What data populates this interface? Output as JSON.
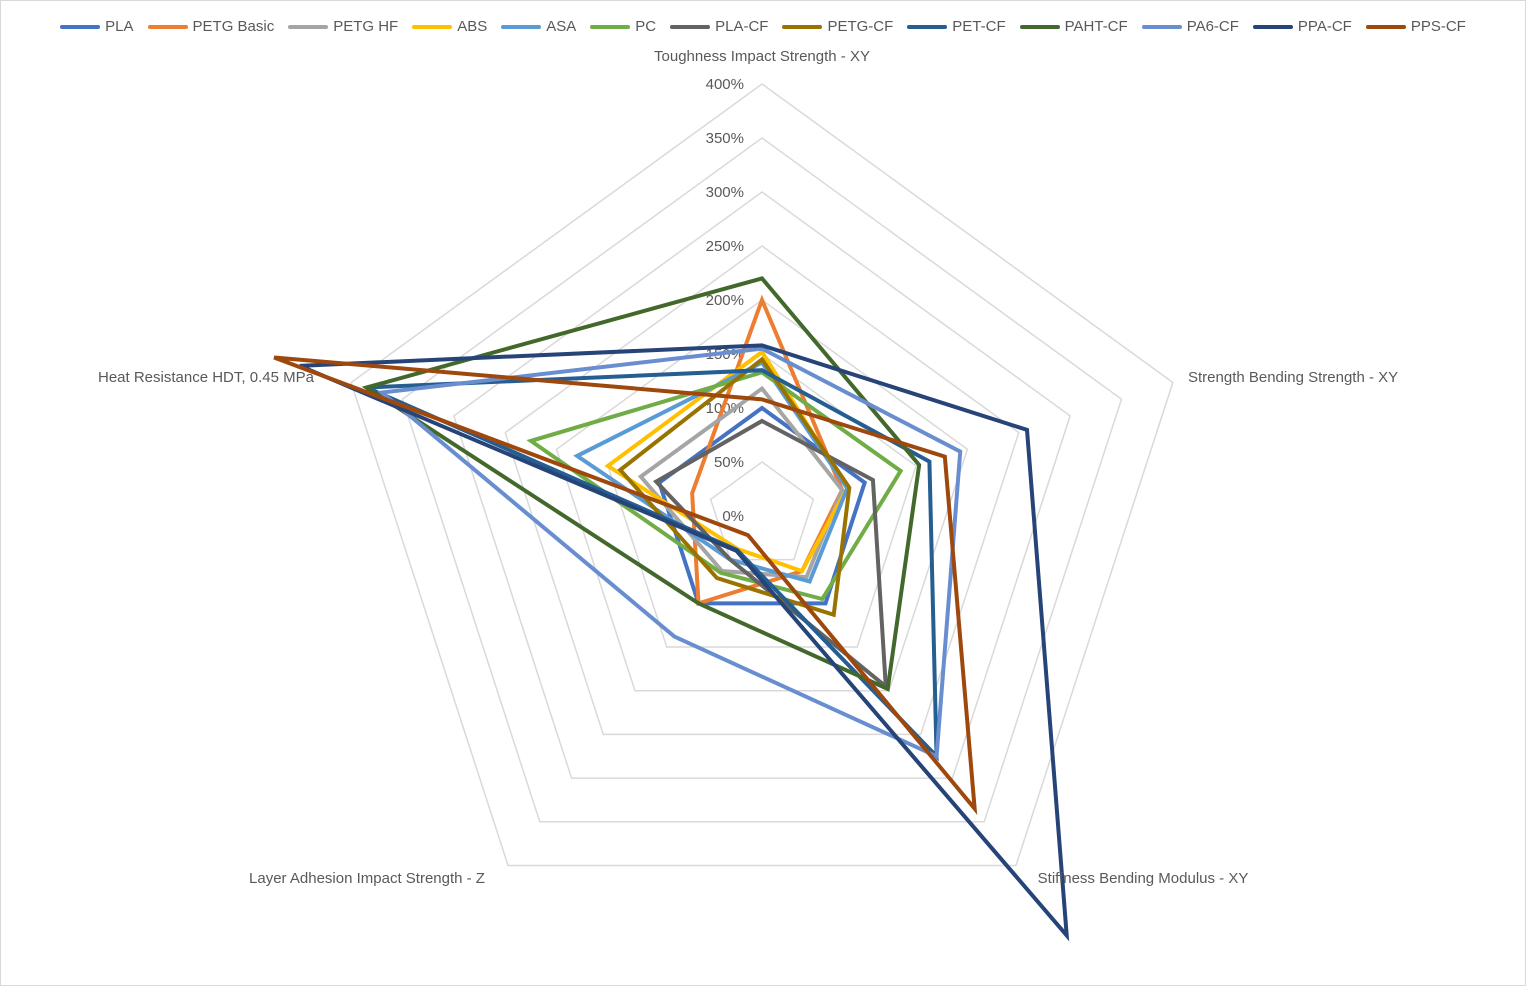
{
  "chart_data": {
    "type": "radar",
    "axes": [
      "Toughness Impact Strength - XY",
      "Strength Bending Strength - XY",
      "Stiffness Bending Modulus - XY",
      "Layer Adhesion Impact Strength - Z",
      "Heat Resistance HDT, 0.45 MPa"
    ],
    "tick_labels": [
      "0%",
      "50%",
      "100%",
      "150%",
      "200%",
      "250%",
      "300%",
      "350%",
      "400%"
    ],
    "rlim": [
      0,
      400
    ],
    "grid": true,
    "legend_position": "top",
    "series": [
      {
        "name": "PLA",
        "color": "#4472C4",
        "values": [
          100,
          100,
          100,
          100,
          100
        ]
      },
      {
        "name": "PETG Basic",
        "color": "#ED7D31",
        "values": [
          200,
          78,
          63,
          100,
          68
        ]
      },
      {
        "name": "PETG HF",
        "color": "#A5A5A5",
        "values": [
          118,
          78,
          70,
          63,
          118
        ]
      },
      {
        "name": "ABS",
        "color": "#FFC000",
        "values": [
          152,
          83,
          63,
          38,
          150
        ]
      },
      {
        "name": "ASA",
        "color": "#5B9BD5",
        "values": [
          142,
          83,
          75,
          50,
          180
        ]
      },
      {
        "name": "PC",
        "color": "#70AD47",
        "values": [
          133,
          135,
          95,
          65,
          225
        ]
      },
      {
        "name": "PLA-CF",
        "color": "#636363",
        "values": [
          88,
          108,
          195,
          50,
          103
        ]
      },
      {
        "name": "PETG-CF",
        "color": "#997300",
        "values": [
          145,
          85,
          113,
          71,
          138
        ]
      },
      {
        "name": "PET-CF",
        "color": "#255E91",
        "values": [
          135,
          163,
          275,
          39,
          385
        ]
      },
      {
        "name": "PAHT-CF",
        "color": "#43682B",
        "values": [
          220,
          153,
          198,
          100,
          385
        ]
      },
      {
        "name": "PA6-CF",
        "color": "#698ED0",
        "values": [
          155,
          193,
          275,
          138,
          370
        ]
      },
      {
        "name": "PPA-CF",
        "color": "#264478",
        "values": [
          158,
          258,
          480,
          40,
          450
        ]
      },
      {
        "name": "PPS-CF",
        "color": "#9E480E",
        "values": [
          108,
          178,
          335,
          22,
          475
        ]
      }
    ]
  }
}
